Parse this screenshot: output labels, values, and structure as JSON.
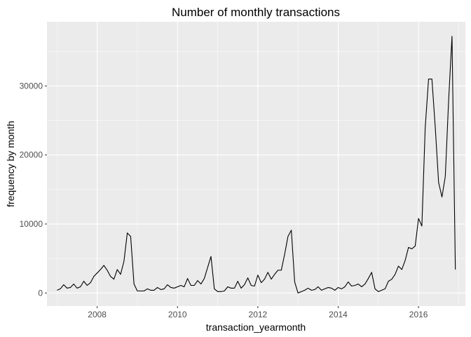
{
  "chart_data": {
    "type": "line",
    "title": "Number of monthly transactions",
    "xlabel": "transaction_yearmonth",
    "ylabel": "frequency by month",
    "xlim": [
      "2006-10",
      "2017-03"
    ],
    "ylim": [
      -1900,
      39300
    ],
    "x_ticks": [
      {
        "value": "2008-01",
        "label": "2008"
      },
      {
        "value": "2010-01",
        "label": "2010"
      },
      {
        "value": "2012-01",
        "label": "2012"
      },
      {
        "value": "2014-01",
        "label": "2014"
      },
      {
        "value": "2016-01",
        "label": "2016"
      }
    ],
    "y_ticks": [
      {
        "value": 0,
        "label": "0"
      },
      {
        "value": 10000,
        "label": "10000"
      },
      {
        "value": 20000,
        "label": "20000"
      },
      {
        "value": 30000,
        "label": "30000"
      }
    ],
    "grid": true,
    "colors": {
      "panel": "#ebebeb",
      "grid": "#ffffff",
      "line": "#000000"
    },
    "series": [
      {
        "x": [
          "2007-01",
          "2007-02",
          "2007-03",
          "2007-04",
          "2007-05",
          "2007-06",
          "2007-07",
          "2007-08",
          "2007-09",
          "2007-10",
          "2007-11",
          "2007-12",
          "2008-01",
          "2008-02",
          "2008-03",
          "2008-04",
          "2008-05",
          "2008-06",
          "2008-07",
          "2008-08",
          "2008-09",
          "2008-10",
          "2008-11",
          "2008-12",
          "2009-01",
          "2009-02",
          "2009-03",
          "2009-04",
          "2009-05",
          "2009-06",
          "2009-07",
          "2009-08",
          "2009-09",
          "2009-10",
          "2009-11",
          "2009-12",
          "2010-01",
          "2010-02",
          "2010-03",
          "2010-04",
          "2010-05",
          "2010-06",
          "2010-07",
          "2010-08",
          "2010-09",
          "2010-10",
          "2010-11",
          "2010-12",
          "2011-01",
          "2011-02",
          "2011-03",
          "2011-04",
          "2011-05",
          "2011-06",
          "2011-07",
          "2011-08",
          "2011-09",
          "2011-10",
          "2011-11",
          "2011-12",
          "2012-01",
          "2012-02",
          "2012-03",
          "2012-04",
          "2012-05",
          "2012-06",
          "2012-07",
          "2012-08",
          "2012-09",
          "2012-10",
          "2012-11",
          "2012-12",
          "2013-01",
          "2013-02",
          "2013-03",
          "2013-04",
          "2013-05",
          "2013-06",
          "2013-07",
          "2013-08",
          "2013-09",
          "2013-10",
          "2013-11",
          "2013-12",
          "2014-01",
          "2014-02",
          "2014-03",
          "2014-04",
          "2014-05",
          "2014-06",
          "2014-07",
          "2014-08",
          "2014-09",
          "2014-10",
          "2014-11",
          "2014-12",
          "2015-01",
          "2015-02",
          "2015-03",
          "2015-04",
          "2015-05",
          "2015-06",
          "2015-07",
          "2015-08",
          "2015-09",
          "2015-10",
          "2015-11",
          "2015-12",
          "2016-01",
          "2016-02",
          "2016-03",
          "2016-04",
          "2016-05",
          "2016-06",
          "2016-07",
          "2016-08",
          "2016-09",
          "2016-10",
          "2016-11",
          "2016-12"
        ],
        "y": [
          400,
          600,
          1200,
          700,
          800,
          1300,
          700,
          900,
          1700,
          1100,
          1500,
          2400,
          2900,
          3400,
          4000,
          3300,
          2400,
          2000,
          3400,
          2700,
          4600,
          8700,
          8200,
          1300,
          300,
          300,
          300,
          600,
          400,
          400,
          800,
          500,
          600,
          1200,
          800,
          700,
          900,
          1100,
          900,
          2100,
          1100,
          1100,
          1800,
          1300,
          2100,
          3700,
          5300,
          600,
          200,
          200,
          300,
          900,
          700,
          700,
          1700,
          700,
          1200,
          2200,
          1100,
          1000,
          2600,
          1500,
          2000,
          3000,
          2000,
          2700,
          3300,
          3300,
          5600,
          8200,
          9100,
          1600,
          0,
          200,
          400,
          700,
          400,
          500,
          900,
          400,
          600,
          800,
          700,
          400,
          800,
          600,
          900,
          1600,
          1000,
          1100,
          1300,
          900,
          1300,
          2100,
          3000,
          600,
          200,
          400,
          600,
          1700,
          2000,
          2700,
          3900,
          3400,
          4700,
          6600,
          6400,
          6800,
          10800,
          9700,
          24000,
          31000,
          31000,
          24000,
          16000,
          13900,
          16900,
          28000,
          37200,
          3400
        ]
      }
    ]
  }
}
